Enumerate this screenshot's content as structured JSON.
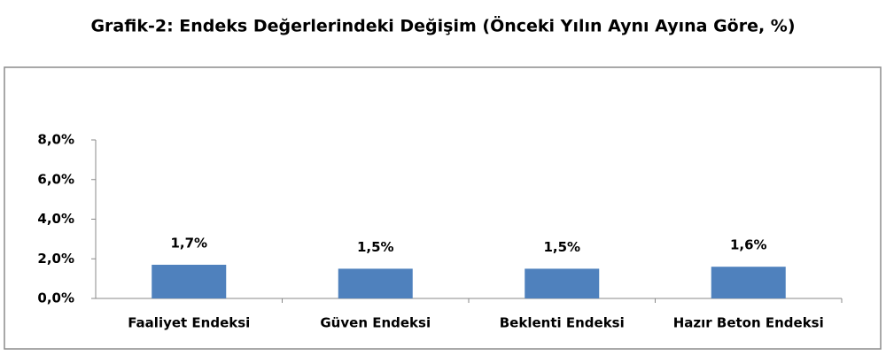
{
  "chart_data": {
    "type": "bar",
    "title": "Grafik-2: Endeks Değerlerindeki Değişim (Önceki Yılın Aynı Ayına Göre, %)",
    "categories": [
      "Faaliyet Endeksi",
      "Güven Endeksi",
      "Beklenti Endeksi",
      "Hazır Beton Endeksi"
    ],
    "values": [
      1.7,
      1.5,
      1.5,
      1.6
    ],
    "value_labels": [
      "1,7%",
      "1,5%",
      "1,5%",
      "1,6%"
    ],
    "color": "#4f81bd",
    "ylim": [
      0,
      8
    ],
    "yticks": [
      {
        "value": 0,
        "label": "0,0%"
      },
      {
        "value": 2,
        "label": "2,0%"
      },
      {
        "value": 4,
        "label": "4,0%"
      },
      {
        "value": 6,
        "label": "6,0%"
      },
      {
        "value": 8,
        "label": "8,0%"
      }
    ],
    "grid": false
  }
}
